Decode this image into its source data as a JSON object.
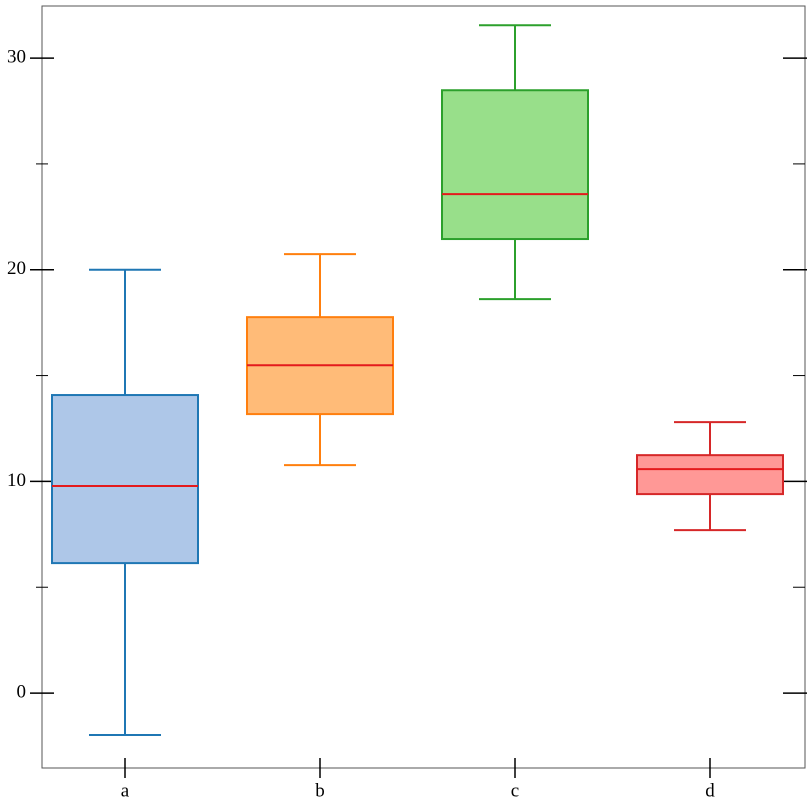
{
  "chart_data": {
    "type": "box",
    "categories": [
      "a",
      "b",
      "c",
      "d"
    ],
    "boxes": [
      {
        "whisker_low": -1.98,
        "q1": 6.14,
        "median": 9.78,
        "q3": 14.08,
        "whisker_high": 20.0,
        "color": "#1f77b4",
        "fill": "#aec7e8"
      },
      {
        "whisker_low": 10.77,
        "q1": 13.18,
        "median": 15.49,
        "q3": 17.76,
        "whisker_high": 20.74,
        "color": "#ff7f0e",
        "fill": "#ffbb78"
      },
      {
        "whisker_low": 18.61,
        "q1": 21.45,
        "median": 23.57,
        "q3": 28.48,
        "whisker_high": 31.55,
        "color": "#2ca02c",
        "fill": "#98df8a"
      },
      {
        "whisker_low": 7.7,
        "q1": 9.4,
        "median": 10.58,
        "q3": 11.24,
        "whisker_high": 12.8,
        "color": "#d62728",
        "fill": "#ff9896"
      }
    ],
    "median_color": "#e41a1c",
    "ylim": [
      -3.54,
      32.46
    ],
    "yticks": [
      0,
      10,
      20,
      30
    ],
    "yminor": [
      5,
      15,
      25
    ]
  }
}
